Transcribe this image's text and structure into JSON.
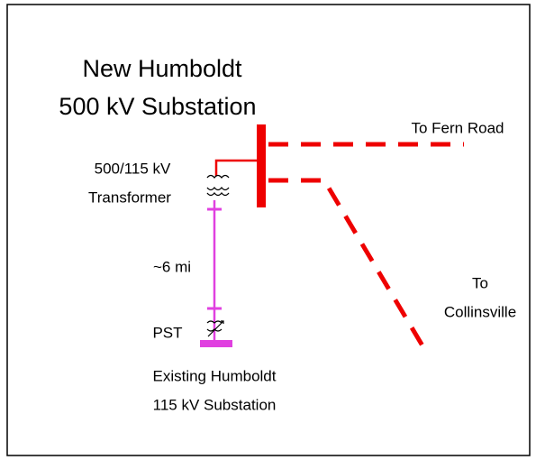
{
  "title": {
    "line1": "New Humboldt",
    "line2": "500 kV Substation"
  },
  "branches": {
    "fern": "To Fern Road",
    "collinsville_1": "To",
    "collinsville_2": "Collinsville"
  },
  "transformer": {
    "line1": "500/115 kV",
    "line2": "Transformer"
  },
  "line_length": "~6 mi",
  "pst": "PST",
  "existing": {
    "line1": "Existing Humboldt",
    "line2": "115 kV Substation"
  }
}
